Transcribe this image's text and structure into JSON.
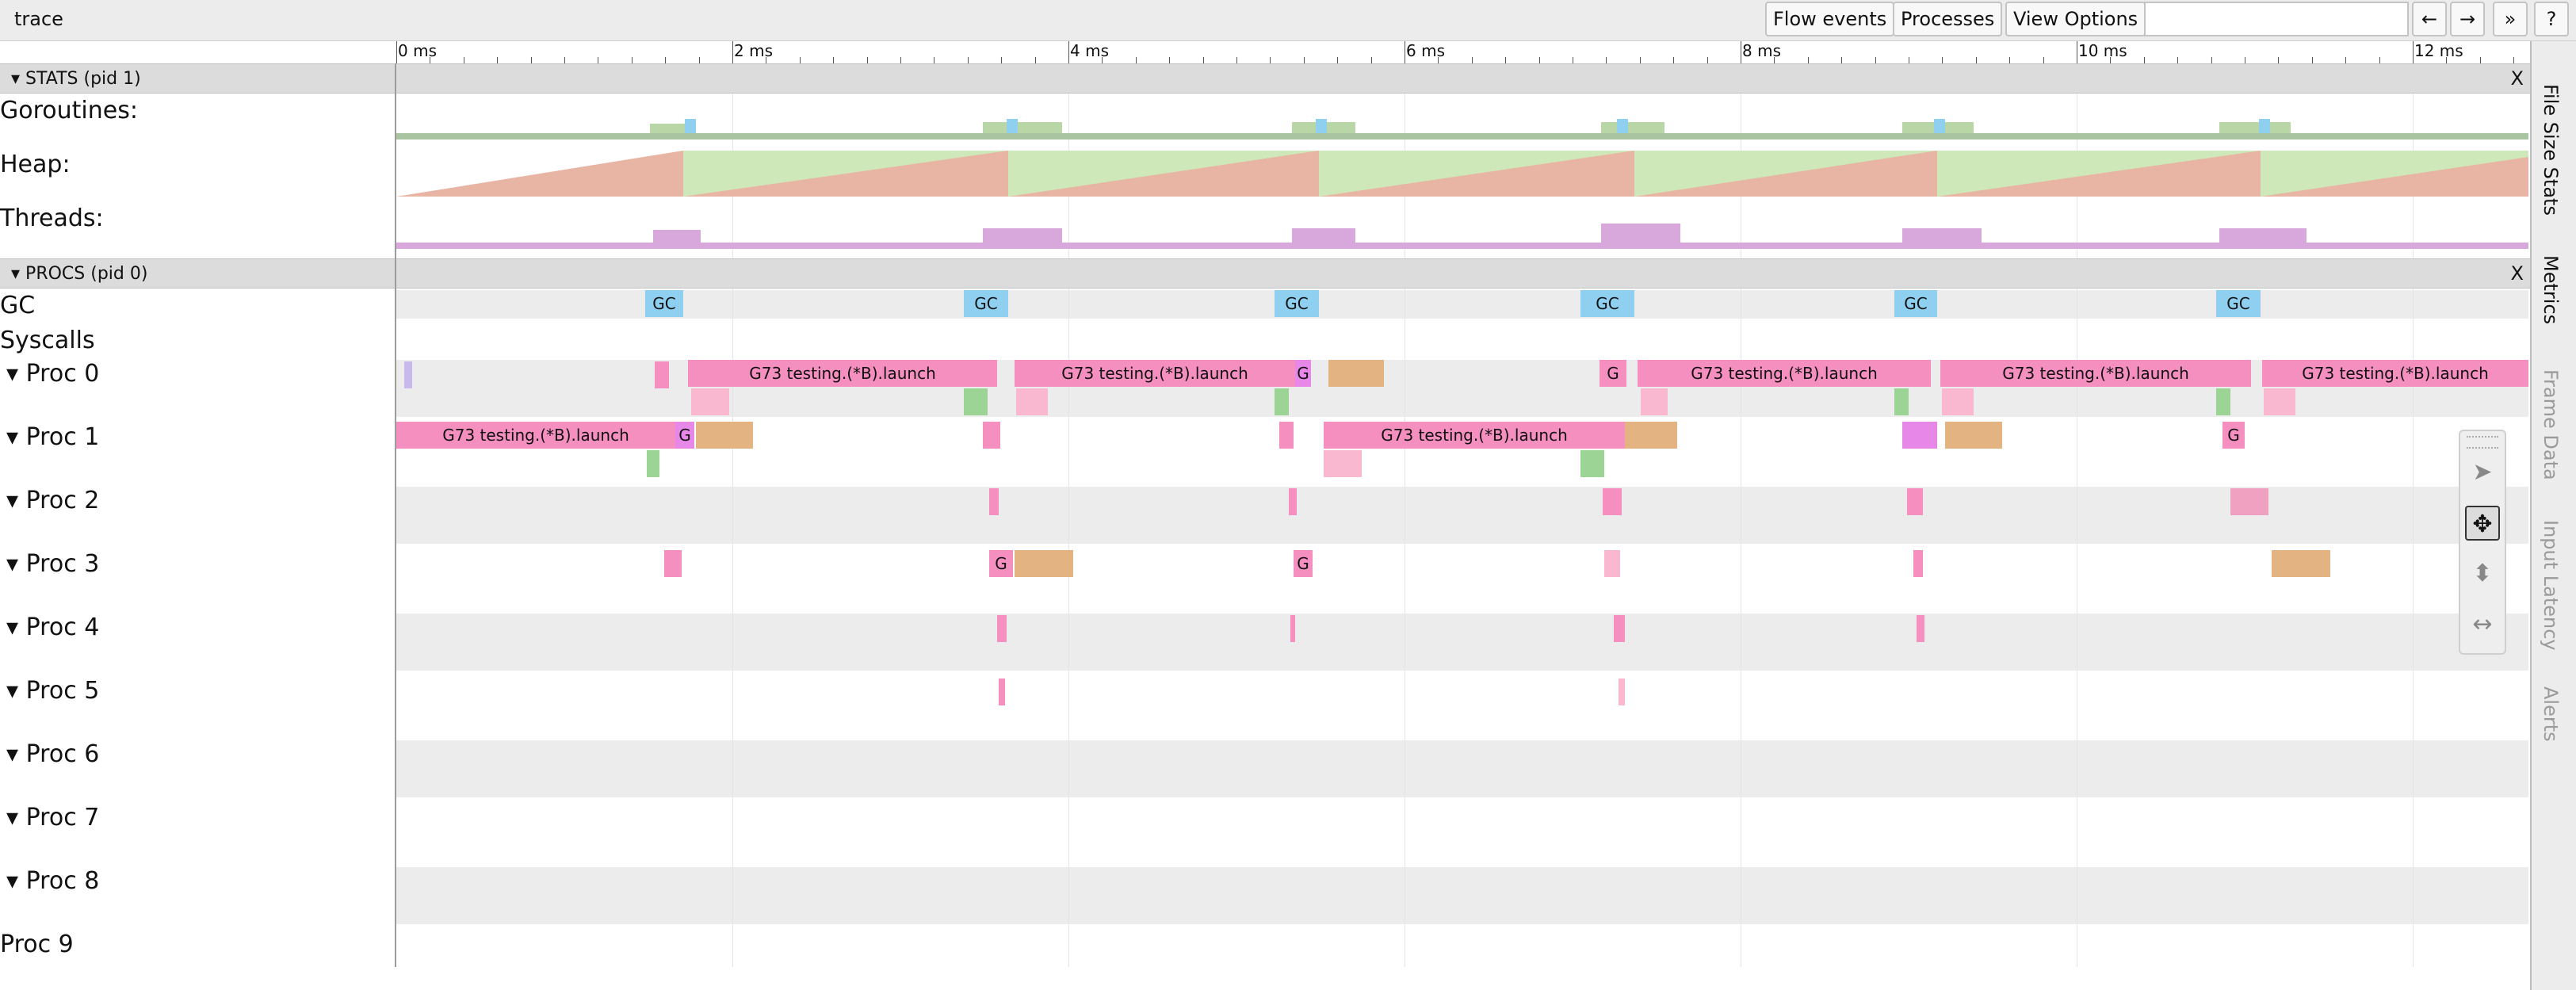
{
  "window": {
    "title": "trace"
  },
  "toolbar": {
    "flow_events": "Flow events",
    "processes": "Processes",
    "view_options": "View Options",
    "search_value": "",
    "prev": "←",
    "next": "→",
    "more": "»",
    "help": "?"
  },
  "ruler": {
    "ticks": [
      "0 ms",
      "2 ms",
      "4 ms",
      "6 ms",
      "8 ms",
      "10 ms",
      "12 ms"
    ]
  },
  "stats": {
    "header": "STATS (pid 1)",
    "close": "X",
    "rows": [
      "Goroutines:",
      "Heap:",
      "Threads:"
    ]
  },
  "procs": {
    "header": "PROCS (pid 0)",
    "close": "X",
    "rows": [
      "GC",
      "Syscalls",
      "Proc 0",
      "Proc 1",
      "Proc 2",
      "Proc 3",
      "Proc 4",
      "Proc 5",
      "Proc 6",
      "Proc 7",
      "Proc 8",
      "Proc 9"
    ],
    "expandable": [
      false,
      false,
      true,
      true,
      true,
      true,
      true,
      true,
      true,
      true,
      true,
      false
    ]
  },
  "gc_label": "GC",
  "g_label": "G",
  "launch_label": "G73 testing.(*B).launch",
  "side_tabs": [
    "File Size Stats",
    "Metrics",
    "Frame Data",
    "Input Latency",
    "Alerts"
  ],
  "tools": [
    "select-icon",
    "pan-icon",
    "zoom-icon",
    "timing-icon"
  ],
  "colors": {
    "launch": "#f58fbf",
    "gc": "#8fcff0",
    "heap_alloc": "#e8b4a3",
    "heap_next": "#cfe8b9",
    "threads": "#d8a8dc",
    "tan": "#e3b382",
    "green": "#9cd496"
  }
}
